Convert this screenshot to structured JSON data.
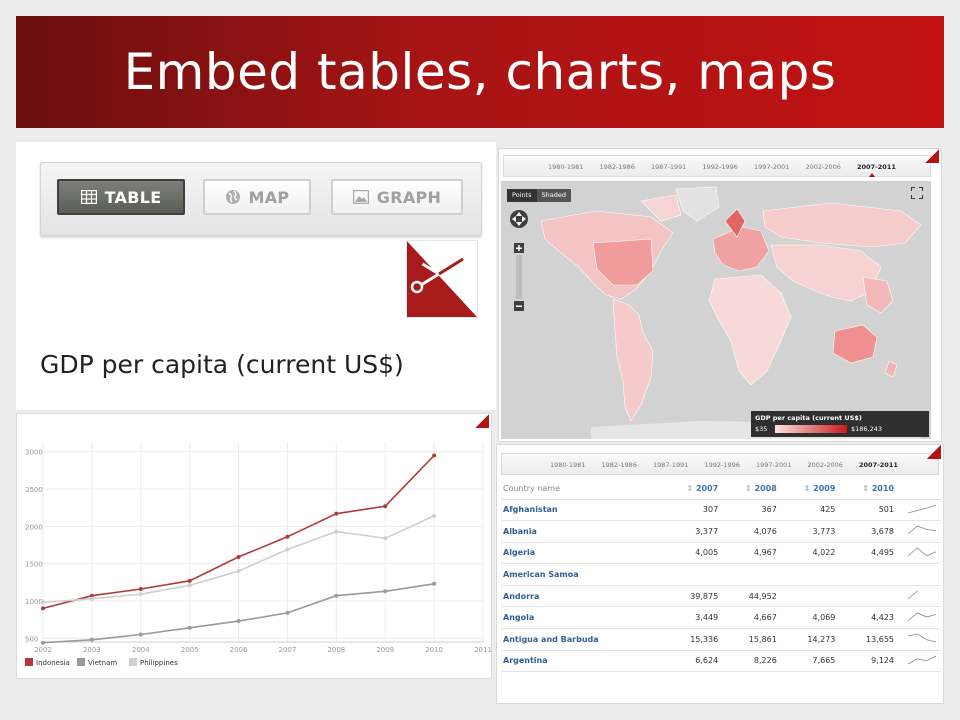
{
  "slide": {
    "title": "Embed tables, charts, maps"
  },
  "view_buttons": [
    {
      "label": "TABLE",
      "icon": "table-icon",
      "active": true
    },
    {
      "label": "MAP",
      "icon": "globe-icon",
      "active": false
    },
    {
      "label": "GRAPH",
      "icon": "image-icon",
      "active": false
    }
  ],
  "indicator_title": "GDP per capita (current US$)",
  "time_periods": [
    "1980-1981",
    "1982-1986",
    "1987-1991",
    "1992-1996",
    "1997-2001",
    "2002-2006",
    "2007-2011"
  ],
  "selected_period": "2007-2011",
  "map": {
    "toggle_points": "Points",
    "toggle_shaded": "Shaded",
    "legend_title": "GDP per capita (current US$)",
    "legend_min": "$35",
    "legend_max": "$186,243",
    "accent_color": "#e05a5a"
  },
  "chart_data": {
    "type": "line",
    "x": [
      2002,
      2003,
      2004,
      2005,
      2006,
      2007,
      2008,
      2009,
      2010
    ],
    "x_ticks": [
      "2002",
      "2003",
      "2004",
      "2005",
      "2006",
      "2007",
      "2008",
      "2009",
      "2010",
      "2011"
    ],
    "y_ticks": [
      "500",
      "1000",
      "1500",
      "2000",
      "2500",
      "3000"
    ],
    "ylim": [
      450,
      3050
    ],
    "grid": true,
    "legend_position": "bottom-left",
    "series": [
      {
        "name": "Indonesia",
        "color": "#b03a3a",
        "values": [
          900,
          1070,
          1160,
          1270,
          1590,
          1860,
          2170,
          2270,
          2950
        ]
      },
      {
        "name": "Vietnam",
        "color": "#9a9a9a",
        "values": [
          440,
          480,
          550,
          640,
          730,
          840,
          1070,
          1130,
          1230
        ]
      },
      {
        "name": "Philippines",
        "color": "#cfcfcf",
        "values": [
          980,
          1030,
          1090,
          1210,
          1400,
          1690,
          1930,
          1840,
          2140
        ]
      }
    ]
  },
  "table": {
    "col_country": "Country name",
    "years": [
      "2007",
      "2008",
      "2009",
      "2010"
    ],
    "rows": [
      {
        "country": "Afghanistan",
        "values": [
          "307",
          "367",
          "425",
          "501"
        ],
        "spark": [
          307,
          367,
          425,
          501
        ]
      },
      {
        "country": "Albania",
        "values": [
          "3,377",
          "4,076",
          "3,773",
          "3,678"
        ],
        "spark": [
          3377,
          4076,
          3773,
          3678
        ]
      },
      {
        "country": "Algeria",
        "values": [
          "4,005",
          "4,967",
          "4,022",
          "4,495"
        ],
        "spark": [
          4005,
          4967,
          4022,
          4495
        ]
      },
      {
        "country": "American Samoa",
        "values": [
          "",
          "",
          "",
          ""
        ],
        "spark": []
      },
      {
        "country": "Andorra",
        "values": [
          "39,875",
          "44,952",
          "",
          ""
        ],
        "spark": [
          39875,
          44952
        ]
      },
      {
        "country": "Angola",
        "values": [
          "3,449",
          "4,667",
          "4,069",
          "4,423"
        ],
        "spark": [
          3449,
          4667,
          4069,
          4423
        ]
      },
      {
        "country": "Antigua and Barbuda",
        "values": [
          "15,336",
          "15,861",
          "14,273",
          "13,655"
        ],
        "spark": [
          15336,
          15861,
          14273,
          13655
        ]
      },
      {
        "country": "Argentina",
        "values": [
          "6,624",
          "8,226",
          "7,665",
          "9,124"
        ],
        "spark": [
          6624,
          8226,
          7665,
          9124
        ]
      }
    ]
  }
}
